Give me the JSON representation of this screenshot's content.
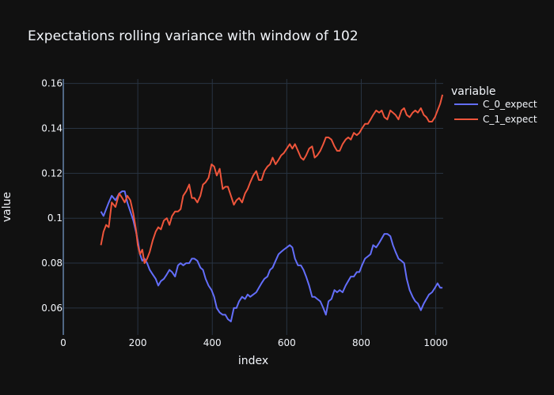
{
  "chart_data": {
    "type": "line",
    "title": "Expectations rolling variance with window of 102",
    "xlabel": "index",
    "ylabel": "value",
    "xlim": [
      0,
      1020
    ],
    "ylim": [
      0.048,
      0.162
    ],
    "x_ticks": [
      {
        "value": 0,
        "label": "0"
      },
      {
        "value": 200,
        "label": "200"
      },
      {
        "value": 400,
        "label": "400"
      },
      {
        "value": 600,
        "label": "600"
      },
      {
        "value": 800,
        "label": "800"
      },
      {
        "value": 1000,
        "label": "1000"
      }
    ],
    "y_ticks": [
      {
        "value": 0.06,
        "label": "0.06"
      },
      {
        "value": 0.08,
        "label": "0.08"
      },
      {
        "value": 0.1,
        "label": "0.1"
      },
      {
        "value": 0.12,
        "label": "0.12"
      },
      {
        "value": 0.14,
        "label": "0.14"
      },
      {
        "value": 0.16,
        "label": "0.16"
      }
    ],
    "legend": {
      "title": "variable",
      "placement": "top-right"
    },
    "series": [
      {
        "name": "C_0_expect",
        "color": "#636efa",
        "x": [
          101,
          108,
          115,
          122,
          130,
          140,
          150,
          158,
          165,
          172,
          180,
          188,
          195,
          200,
          206,
          212,
          218,
          225,
          232,
          240,
          248,
          255,
          262,
          270,
          278,
          285,
          292,
          300,
          308,
          315,
          322,
          330,
          338,
          345,
          352,
          360,
          368,
          375,
          382,
          390,
          398,
          405,
          412,
          420,
          428,
          435,
          442,
          450,
          458,
          465,
          472,
          480,
          488,
          495,
          502,
          510,
          518,
          525,
          532,
          540,
          548,
          555,
          562,
          570,
          578,
          585,
          592,
          600,
          608,
          615,
          622,
          630,
          638,
          645,
          652,
          660,
          668,
          675,
          682,
          690,
          698,
          705,
          712,
          720,
          728,
          735,
          742,
          750,
          758,
          765,
          772,
          780,
          788,
          795,
          802,
          810,
          818,
          825,
          832,
          840,
          848,
          855,
          862,
          870,
          878,
          885,
          892,
          900,
          908,
          915,
          922,
          930,
          938,
          945,
          952,
          960,
          968,
          975,
          982,
          990,
          998,
          1005,
          1012,
          1018
        ],
        "y": [
          0.103,
          0.101,
          0.104,
          0.107,
          0.11,
          0.108,
          0.111,
          0.112,
          0.112,
          0.107,
          0.103,
          0.099,
          0.094,
          0.09,
          0.084,
          0.081,
          0.082,
          0.08,
          0.077,
          0.075,
          0.073,
          0.07,
          0.072,
          0.073,
          0.075,
          0.077,
          0.076,
          0.074,
          0.079,
          0.08,
          0.079,
          0.08,
          0.08,
          0.082,
          0.082,
          0.081,
          0.078,
          0.077,
          0.073,
          0.07,
          0.068,
          0.065,
          0.06,
          0.058,
          0.057,
          0.057,
          0.055,
          0.054,
          0.06,
          0.06,
          0.063,
          0.065,
          0.064,
          0.066,
          0.065,
          0.066,
          0.067,
          0.069,
          0.071,
          0.073,
          0.074,
          0.077,
          0.078,
          0.081,
          0.084,
          0.085,
          0.086,
          0.087,
          0.088,
          0.087,
          0.082,
          0.079,
          0.079,
          0.077,
          0.074,
          0.07,
          0.065,
          0.065,
          0.064,
          0.063,
          0.06,
          0.057,
          0.063,
          0.064,
          0.068,
          0.067,
          0.068,
          0.067,
          0.07,
          0.072,
          0.074,
          0.074,
          0.076,
          0.076,
          0.079,
          0.082,
          0.083,
          0.084,
          0.088,
          0.087,
          0.089,
          0.091,
          0.093,
          0.093,
          0.092,
          0.088,
          0.085,
          0.082,
          0.081,
          0.08,
          0.073,
          0.068,
          0.065,
          0.063,
          0.062,
          0.059,
          0.062,
          0.064,
          0.066,
          0.067,
          0.069,
          0.071,
          0.069,
          0.069
        ]
      },
      {
        "name": "C_1_expect",
        "color": "#ef553b",
        "x": [
          101,
          108,
          115,
          122,
          130,
          140,
          150,
          158,
          165,
          172,
          180,
          188,
          195,
          200,
          206,
          212,
          218,
          225,
          232,
          240,
          248,
          255,
          262,
          270,
          278,
          285,
          292,
          300,
          308,
          315,
          322,
          330,
          338,
          345,
          352,
          360,
          368,
          375,
          382,
          390,
          398,
          405,
          412,
          420,
          428,
          435,
          442,
          450,
          458,
          465,
          472,
          480,
          488,
          495,
          502,
          510,
          518,
          525,
          532,
          540,
          548,
          555,
          562,
          570,
          578,
          585,
          592,
          600,
          608,
          615,
          622,
          630,
          638,
          645,
          652,
          660,
          668,
          675,
          682,
          690,
          698,
          705,
          712,
          720,
          728,
          735,
          742,
          750,
          758,
          765,
          772,
          780,
          788,
          795,
          802,
          810,
          818,
          825,
          832,
          840,
          848,
          855,
          862,
          870,
          878,
          885,
          892,
          900,
          908,
          915,
          922,
          930,
          938,
          945,
          952,
          960,
          968,
          975,
          982,
          990,
          998,
          1005,
          1012,
          1018
        ],
        "y": [
          0.088,
          0.094,
          0.097,
          0.096,
          0.107,
          0.105,
          0.111,
          0.109,
          0.107,
          0.11,
          0.108,
          0.102,
          0.095,
          0.088,
          0.084,
          0.086,
          0.08,
          0.082,
          0.085,
          0.09,
          0.094,
          0.096,
          0.095,
          0.099,
          0.1,
          0.097,
          0.101,
          0.103,
          0.103,
          0.104,
          0.11,
          0.112,
          0.115,
          0.109,
          0.109,
          0.107,
          0.11,
          0.115,
          0.116,
          0.118,
          0.124,
          0.123,
          0.119,
          0.122,
          0.113,
          0.114,
          0.114,
          0.11,
          0.106,
          0.108,
          0.109,
          0.107,
          0.111,
          0.113,
          0.116,
          0.119,
          0.121,
          0.117,
          0.117,
          0.121,
          0.123,
          0.124,
          0.127,
          0.124,
          0.126,
          0.128,
          0.129,
          0.131,
          0.133,
          0.131,
          0.133,
          0.13,
          0.127,
          0.126,
          0.128,
          0.131,
          0.132,
          0.127,
          0.128,
          0.13,
          0.133,
          0.136,
          0.136,
          0.135,
          0.132,
          0.13,
          0.13,
          0.133,
          0.135,
          0.136,
          0.135,
          0.138,
          0.137,
          0.138,
          0.14,
          0.142,
          0.142,
          0.144,
          0.146,
          0.148,
          0.147,
          0.148,
          0.145,
          0.144,
          0.148,
          0.147,
          0.146,
          0.144,
          0.148,
          0.149,
          0.146,
          0.145,
          0.147,
          0.148,
          0.147,
          0.149,
          0.146,
          0.145,
          0.143,
          0.143,
          0.145,
          0.148,
          0.151,
          0.155
        ]
      }
    ]
  }
}
